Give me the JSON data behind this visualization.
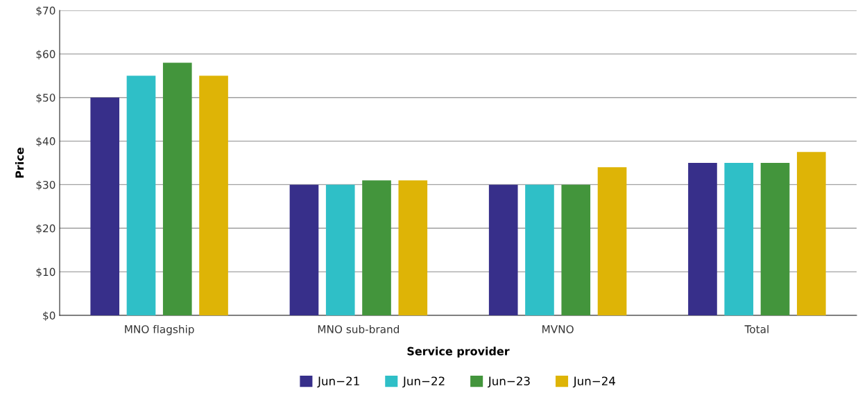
{
  "chart_data": {
    "type": "bar",
    "xlabel": "Service provider",
    "ylabel": "Price",
    "categories": [
      "MNO flagship",
      "MNO sub-brand",
      "MVNO",
      "Total"
    ],
    "series": [
      {
        "name": "Jun−21",
        "color": "#372f8a",
        "values": [
          50,
          30,
          30,
          35
        ]
      },
      {
        "name": "Jun−22",
        "color": "#2fbfc7",
        "values": [
          55,
          30,
          30,
          35
        ]
      },
      {
        "name": "Jun−23",
        "color": "#43953c",
        "values": [
          58,
          31,
          30,
          35
        ]
      },
      {
        "name": "Jun−24",
        "color": "#deb406",
        "values": [
          55,
          31,
          34,
          37.5
        ]
      }
    ],
    "ylim": [
      0,
      70
    ],
    "yticks": [
      {
        "value": 0,
        "label": "$0"
      },
      {
        "value": 10,
        "label": "$10"
      },
      {
        "value": 20,
        "label": "$20"
      },
      {
        "value": 30,
        "label": "$30"
      },
      {
        "value": 40,
        "label": "$40"
      },
      {
        "value": 50,
        "label": "$50"
      },
      {
        "value": 60,
        "label": "$60"
      },
      {
        "value": 70,
        "label": "$70"
      }
    ],
    "grid": "y",
    "legend": "bottom"
  }
}
